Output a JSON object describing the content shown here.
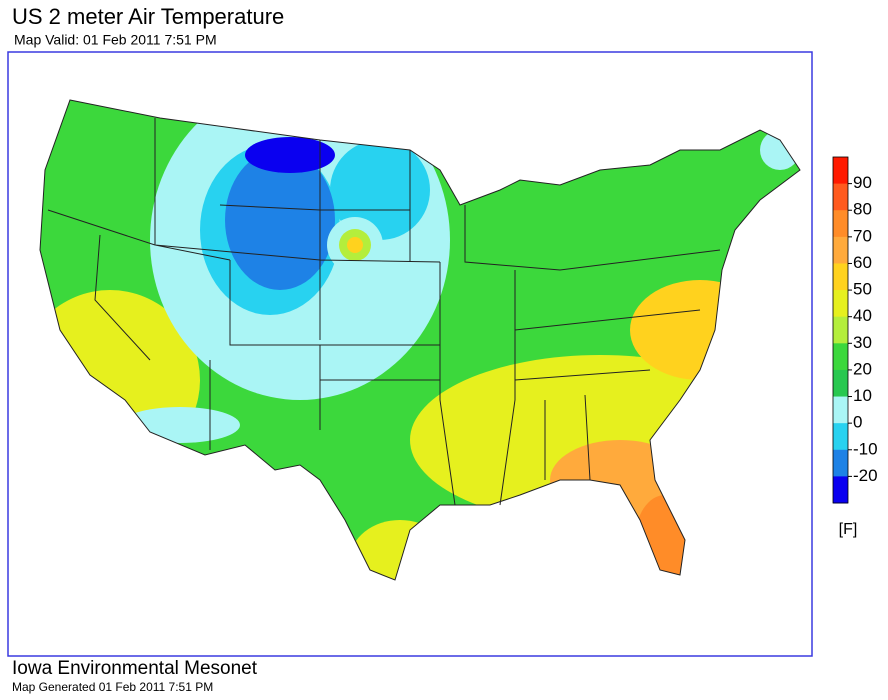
{
  "header": {
    "title": "US 2 meter Air Temperature",
    "subtitle": "Map Valid: 01 Feb 2011 7:51 PM"
  },
  "legend": {
    "ticks": [
      90,
      80,
      70,
      60,
      50,
      40,
      30,
      20,
      10,
      0,
      -10,
      -20
    ],
    "unit": "[F]",
    "colors": [
      "#ff1a00",
      "#ff5a1e",
      "#ff8c28",
      "#ffaa3c",
      "#ffd21e",
      "#e6f01e",
      "#b4ee3c",
      "#3cd83c",
      "#28c850",
      "#aaf5f5",
      "#28d2f0",
      "#1e82e6",
      "#0a00f0"
    ]
  },
  "footer": {
    "source": "Iowa Environmental Mesonet",
    "generated": "Map Generated 01 Feb 2011 7:51 PM"
  }
}
